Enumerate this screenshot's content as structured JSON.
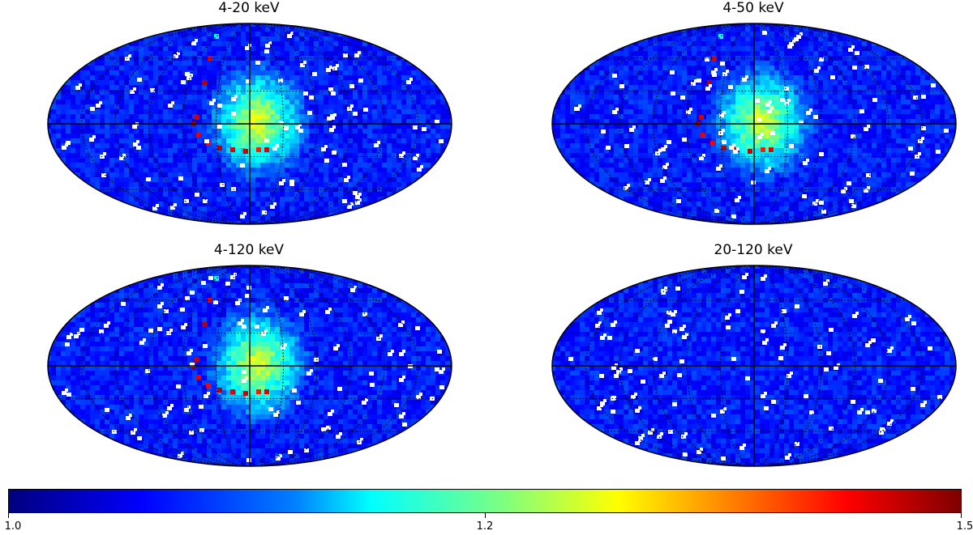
{
  "chart_data": [
    {
      "type": "heatmap",
      "projection": "mollweide",
      "title": "4-20 keV",
      "hot_spot": true,
      "arc": true
    },
    {
      "type": "heatmap",
      "projection": "mollweide",
      "title": "4-50 keV",
      "hot_spot": true,
      "arc": true
    },
    {
      "type": "heatmap",
      "projection": "mollweide",
      "title": "4-120 keV",
      "hot_spot": true,
      "arc": true
    },
    {
      "type": "heatmap",
      "projection": "mollweide",
      "title": "20-120 keV",
      "hot_spot": false,
      "arc": false
    }
  ],
  "colorbar": {
    "min": 1.0,
    "max": 1.5,
    "tick_labels": [
      "1.0",
      "1.2",
      "1.5"
    ],
    "tick_values": [
      1.0,
      1.2,
      1.5
    ],
    "colormap": "jet"
  },
  "colors": {
    "background_low": "#1a2bd1",
    "mask": "#ffffff",
    "grid": "#000000"
  }
}
